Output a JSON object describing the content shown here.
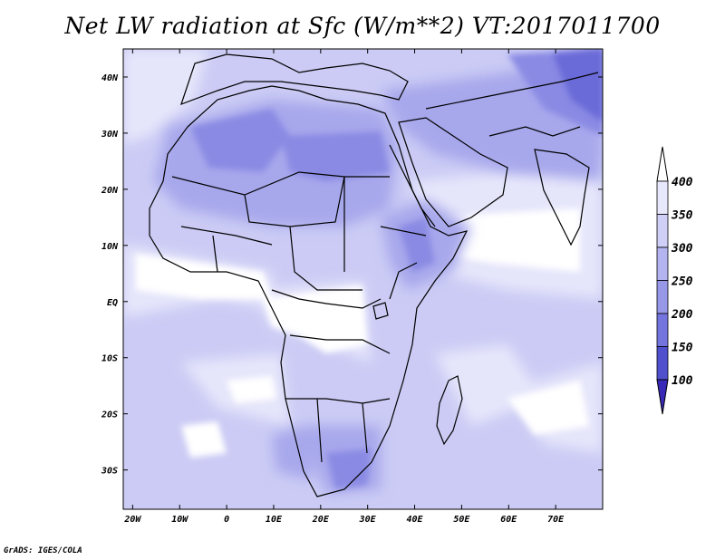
{
  "title": "Net LW radiation at Sfc (W/m**2) VT:2017011700",
  "credit": "GrADS: IGES/COLA",
  "lon_ticks": [
    "20W",
    "10W",
    "0",
    "10E",
    "20E",
    "30E",
    "40E",
    "50E",
    "60E",
    "70E"
  ],
  "lat_ticks": [
    "40N",
    "30N",
    "20N",
    "10N",
    "EQ",
    "10S",
    "20S",
    "30S"
  ],
  "colorbar": {
    "labels": [
      "400",
      "350",
      "300",
      "250",
      "200",
      "150",
      "100"
    ],
    "colors": [
      "#e8e8fc",
      "#cfcff7",
      "#b4b4f1",
      "#9898e9",
      "#7474df",
      "#5050cf",
      "#3a2ab8"
    ]
  },
  "map_extent": {
    "lon": [
      -22,
      80
    ],
    "lat": [
      -37,
      45
    ]
  }
}
